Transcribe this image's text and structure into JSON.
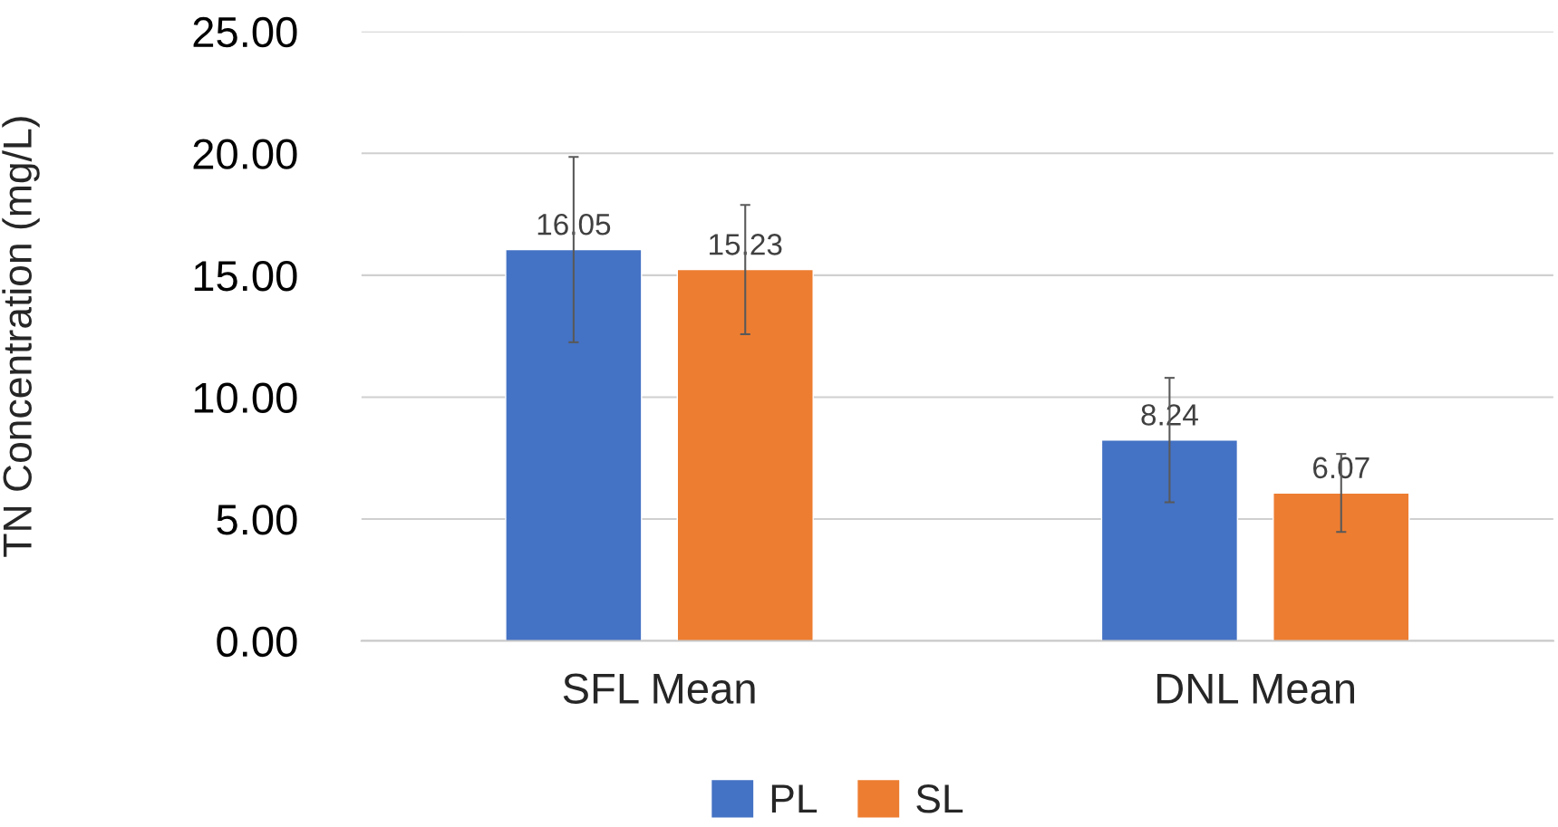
{
  "chart_data": {
    "type": "bar",
    "ylabel": "TN Concentration (mg/L)",
    "categories": [
      "SFL Mean",
      "DNL Mean"
    ],
    "series": [
      {
        "name": "PL",
        "color": "#4472c4",
        "values": [
          16.05,
          8.24
        ],
        "errors": [
          3.8,
          2.55
        ]
      },
      {
        "name": "SL",
        "color": "#ed7d31",
        "values": [
          15.23,
          6.07
        ],
        "errors": [
          2.65,
          1.6
        ]
      }
    ],
    "ylim": [
      0,
      25
    ],
    "yticks": [
      {
        "value": 0,
        "label": "0.00"
      },
      {
        "value": 5,
        "label": "5.00"
      },
      {
        "value": 10,
        "label": "10.00"
      },
      {
        "value": 15,
        "label": "15.00"
      },
      {
        "value": 20,
        "label": "20.00"
      },
      {
        "value": 25,
        "label": "25.00"
      }
    ],
    "grid": "y",
    "legend": "bottom",
    "data_labels": true
  }
}
